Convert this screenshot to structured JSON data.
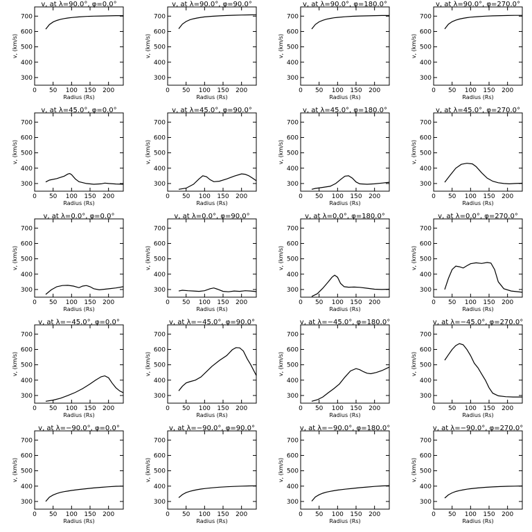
{
  "chart_data": [
    {
      "type": "line",
      "title": "v<sub>r</sub> at λ=90.0°, φ=0.0°",
      "title_text": "v, at λ=90.0°, φ=0.0°",
      "xlabel": "Radius (Rs)",
      "ylabel": "v, (km/s)",
      "xlim": [
        0,
        240
      ],
      "ylim": [
        250,
        760
      ],
      "xticks": [
        0,
        50,
        100,
        150,
        200
      ],
      "yticks": [
        300,
        400,
        500,
        600,
        700
      ],
      "x": [
        30,
        40,
        50,
        60,
        70,
        80,
        90,
        100,
        120,
        140,
        160,
        180,
        200,
        220,
        240
      ],
      "y": [
        615,
        645,
        662,
        672,
        679,
        684,
        688,
        691,
        695,
        698,
        700,
        701,
        702,
        703,
        703
      ]
    },
    {
      "type": "line",
      "title_text": "v, at λ=90.0°, φ=90.0°",
      "xlabel": "Radius (Rs)",
      "ylabel": "v, (km/s)",
      "xlim": [
        0,
        240
      ],
      "ylim": [
        250,
        760
      ],
      "xticks": [
        0,
        50,
        100,
        150,
        200
      ],
      "yticks": [
        300,
        400,
        500,
        600,
        700
      ],
      "x": [
        30,
        40,
        50,
        60,
        70,
        80,
        90,
        100,
        120,
        140,
        160,
        180,
        200,
        220,
        240
      ],
      "y": [
        618,
        648,
        665,
        676,
        683,
        688,
        692,
        695,
        699,
        702,
        704,
        706,
        707,
        708,
        709
      ]
    },
    {
      "type": "line",
      "title_text": "v, at λ=90.0°, φ=180.0°",
      "xlabel": "Radius (Rs)",
      "ylabel": "v, (km/s)",
      "xlim": [
        0,
        240
      ],
      "ylim": [
        250,
        760
      ],
      "xticks": [
        0,
        50,
        100,
        150,
        200
      ],
      "yticks": [
        300,
        400,
        500,
        600,
        700
      ],
      "x": [
        30,
        40,
        50,
        60,
        70,
        80,
        90,
        100,
        120,
        140,
        160,
        180,
        200,
        220,
        240
      ],
      "y": [
        616,
        646,
        663,
        673,
        680,
        685,
        689,
        692,
        696,
        699,
        701,
        702,
        703,
        704,
        704
      ]
    },
    {
      "type": "line",
      "title_text": "v, at λ=90.0°, φ=270.0°",
      "xlabel": "Radius (Rs)",
      "ylabel": "v, (km/s)",
      "xlim": [
        0,
        240
      ],
      "ylim": [
        250,
        760
      ],
      "xticks": [
        0,
        50,
        100,
        150,
        200
      ],
      "yticks": [
        300,
        400,
        500,
        600,
        700
      ],
      "x": [
        30,
        40,
        50,
        60,
        70,
        80,
        90,
        100,
        120,
        140,
        160,
        180,
        200,
        220,
        240
      ],
      "y": [
        617,
        647,
        664,
        674,
        681,
        686,
        690,
        693,
        697,
        700,
        702,
        703,
        704,
        705,
        705
      ]
    },
    {
      "type": "line",
      "title_text": "v, at λ=45.0°, φ=0.0°",
      "xlabel": "Radius (Rs)",
      "ylabel": "v, (km/s)",
      "xlim": [
        0,
        240
      ],
      "ylim": [
        250,
        760
      ],
      "xticks": [
        0,
        50,
        100,
        150,
        200
      ],
      "yticks": [
        300,
        400,
        500,
        600,
        700
      ],
      "x": [
        30,
        40,
        60,
        80,
        90,
        95,
        100,
        110,
        120,
        140,
        160,
        180,
        190,
        200,
        220,
        240
      ],
      "y": [
        310,
        322,
        332,
        348,
        362,
        365,
        358,
        330,
        312,
        300,
        295,
        298,
        303,
        300,
        297,
        295
      ]
    },
    {
      "type": "line",
      "title_text": "v, at λ=45.0°, φ=90.0°",
      "xlabel": "Radius (Rs)",
      "ylabel": "v, (km/s)",
      "xlim": [
        0,
        240
      ],
      "ylim": [
        250,
        760
      ],
      "xticks": [
        0,
        50,
        100,
        150,
        200
      ],
      "yticks": [
        300,
        400,
        500,
        600,
        700
      ],
      "x": [
        30,
        50,
        70,
        85,
        95,
        105,
        115,
        125,
        140,
        160,
        180,
        200,
        210,
        220,
        230,
        240
      ],
      "y": [
        262,
        270,
        295,
        330,
        350,
        345,
        325,
        312,
        315,
        330,
        348,
        363,
        360,
        350,
        335,
        318
      ]
    },
    {
      "type": "line",
      "title_text": "v, at λ=45.0°, φ=180.0°",
      "xlabel": "Radius (Rs)",
      "ylabel": "v, (km/s)",
      "xlim": [
        0,
        240
      ],
      "ylim": [
        250,
        760
      ],
      "xticks": [
        0,
        50,
        100,
        150,
        200
      ],
      "yticks": [
        300,
        400,
        500,
        600,
        700
      ],
      "x": [
        30,
        40,
        60,
        80,
        95,
        110,
        120,
        130,
        140,
        150,
        160,
        180,
        200,
        220,
        240
      ],
      "y": [
        262,
        268,
        275,
        282,
        300,
        330,
        348,
        350,
        335,
        310,
        298,
        295,
        298,
        303,
        308
      ]
    },
    {
      "type": "line",
      "title_text": "v, at λ=45.0°, φ=270.0°",
      "xlabel": "Radius (Rs)",
      "ylabel": "v, (km/s)",
      "xlim": [
        0,
        240
      ],
      "ylim": [
        250,
        760
      ],
      "xticks": [
        0,
        50,
        100,
        150,
        200
      ],
      "yticks": [
        300,
        400,
        500,
        600,
        700
      ],
      "x": [
        30,
        45,
        60,
        75,
        90,
        105,
        115,
        130,
        145,
        160,
        175,
        190,
        205,
        220,
        240
      ],
      "y": [
        308,
        355,
        400,
        425,
        432,
        428,
        410,
        370,
        335,
        315,
        305,
        300,
        298,
        300,
        302
      ]
    },
    {
      "type": "line",
      "title_text": "v, at λ=0.0°, φ=0.0°",
      "xlabel": "Radius (Rs)",
      "ylabel": "v, (km/s)",
      "xlim": [
        0,
        240
      ],
      "ylim": [
        250,
        760
      ],
      "xticks": [
        0,
        50,
        100,
        150,
        200
      ],
      "yticks": [
        300,
        400,
        500,
        600,
        700
      ],
      "x": [
        30,
        45,
        60,
        75,
        90,
        105,
        120,
        130,
        140,
        150,
        160,
        175,
        190,
        205,
        220,
        240
      ],
      "y": [
        268,
        298,
        318,
        326,
        327,
        322,
        312,
        322,
        326,
        318,
        305,
        298,
        302,
        306,
        310,
        318
      ]
    },
    {
      "type": "line",
      "title_text": "v, at λ=0.0°, φ=90.0°",
      "xlabel": "Radius (Rs)",
      "ylabel": "v, (km/s)",
      "xlim": [
        0,
        240
      ],
      "ylim": [
        250,
        760
      ],
      "xticks": [
        0,
        50,
        100,
        150,
        200
      ],
      "yticks": [
        300,
        400,
        500,
        600,
        700
      ],
      "x": [
        30,
        40,
        55,
        70,
        85,
        100,
        115,
        125,
        135,
        150,
        165,
        180,
        195,
        210,
        225,
        240
      ],
      "y": [
        290,
        295,
        292,
        290,
        288,
        292,
        305,
        310,
        302,
        288,
        285,
        290,
        288,
        292,
        290,
        286
      ]
    },
    {
      "type": "line",
      "title_text": "v, at λ=0.0°, φ=180.0°",
      "xlabel": "Radius (Rs)",
      "ylabel": "v, (km/s)",
      "xlim": [
        0,
        240
      ],
      "ylim": [
        250,
        760
      ],
      "xticks": [
        0,
        50,
        100,
        150,
        200
      ],
      "yticks": [
        300,
        400,
        500,
        600,
        700
      ],
      "x": [
        30,
        45,
        60,
        75,
        85,
        92,
        100,
        108,
        118,
        130,
        145,
        160,
        180,
        200,
        220,
        240
      ],
      "y": [
        255,
        272,
        308,
        350,
        380,
        393,
        380,
        340,
        318,
        315,
        316,
        314,
        308,
        302,
        300,
        302
      ]
    },
    {
      "type": "line",
      "title_text": "v, at λ=0.0°, φ=270.0°",
      "xlabel": "Radius (Rs)",
      "ylabel": "v, (km/s)",
      "xlim": [
        0,
        240
      ],
      "ylim": [
        250,
        760
      ],
      "xticks": [
        0,
        50,
        100,
        150,
        200
      ],
      "yticks": [
        300,
        400,
        500,
        600,
        700
      ],
      "x": [
        30,
        40,
        50,
        60,
        70,
        80,
        90,
        100,
        115,
        130,
        145,
        155,
        165,
        175,
        190,
        210,
        240
      ],
      "y": [
        300,
        372,
        430,
        452,
        448,
        440,
        455,
        468,
        474,
        470,
        476,
        472,
        430,
        350,
        305,
        290,
        282
      ]
    },
    {
      "type": "line",
      "title_text": "v, at λ=−45.0°, φ=0.0°",
      "xlabel": "Radius (Rs)",
      "ylabel": "v, (km/s)",
      "xlim": [
        0,
        240
      ],
      "ylim": [
        250,
        760
      ],
      "xticks": [
        0,
        50,
        100,
        150,
        200
      ],
      "yticks": [
        300,
        400,
        500,
        600,
        700
      ],
      "x": [
        30,
        50,
        70,
        90,
        110,
        130,
        150,
        165,
        180,
        190,
        200,
        210,
        220,
        230,
        240
      ],
      "y": [
        262,
        270,
        282,
        300,
        320,
        345,
        375,
        400,
        422,
        428,
        415,
        380,
        350,
        330,
        318
      ]
    },
    {
      "type": "line",
      "title_text": "v, at λ=−45.0°, φ=90.0°",
      "xlabel": "Radius (Rs)",
      "ylabel": "v, (km/s)",
      "xlim": [
        0,
        240
      ],
      "ylim": [
        250,
        760
      ],
      "xticks": [
        0,
        50,
        100,
        150,
        200
      ],
      "yticks": [
        300,
        400,
        500,
        600,
        700
      ],
      "x": [
        30,
        40,
        50,
        60,
        75,
        90,
        105,
        120,
        140,
        160,
        175,
        185,
        195,
        205,
        215,
        225,
        240
      ],
      "y": [
        330,
        360,
        382,
        390,
        400,
        420,
        455,
        490,
        528,
        560,
        598,
        612,
        610,
        590,
        540,
        500,
        430
      ]
    },
    {
      "type": "line",
      "title_text": "v, at λ=−45.0°, φ=180.0°",
      "xlabel": "Radius (Rs)",
      "ylabel": "v, (km/s)",
      "xlim": [
        0,
        240
      ],
      "ylim": [
        250,
        760
      ],
      "xticks": [
        0,
        50,
        100,
        150,
        200
      ],
      "yticks": [
        300,
        400,
        500,
        600,
        700
      ],
      "x": [
        30,
        45,
        60,
        75,
        90,
        105,
        120,
        135,
        150,
        160,
        170,
        180,
        190,
        205,
        220,
        240
      ],
      "y": [
        262,
        272,
        290,
        318,
        345,
        375,
        420,
        460,
        475,
        468,
        455,
        445,
        442,
        450,
        462,
        485
      ]
    },
    {
      "type": "line",
      "title_text": "v, at λ=−45.0°, φ=270.0°",
      "xlabel": "Radius (Rs)",
      "ylabel": "v, (km/s)",
      "xlim": [
        0,
        240
      ],
      "ylim": [
        250,
        760
      ],
      "xticks": [
        0,
        50,
        100,
        150,
        200
      ],
      "yticks": [
        300,
        400,
        500,
        600,
        700
      ],
      "x": [
        30,
        40,
        50,
        60,
        70,
        80,
        90,
        100,
        110,
        120,
        130,
        140,
        150,
        160,
        175,
        195,
        215,
        240
      ],
      "y": [
        530,
        565,
        600,
        625,
        638,
        630,
        600,
        560,
        510,
        480,
        440,
        400,
        350,
        315,
        298,
        292,
        290,
        290
      ]
    },
    {
      "type": "line",
      "title_text": "v, at λ=−90.0°, φ=0.0°",
      "xlabel": "Radius (Rs)",
      "ylabel": "v, (km/s)",
      "xlim": [
        0,
        240
      ],
      "ylim": [
        250,
        760
      ],
      "xticks": [
        0,
        50,
        100,
        150,
        200
      ],
      "yticks": [
        300,
        400,
        500,
        600,
        700
      ],
      "x": [
        30,
        40,
        50,
        60,
        70,
        80,
        90,
        100,
        120,
        140,
        160,
        180,
        200,
        220,
        240
      ],
      "y": [
        300,
        328,
        342,
        352,
        359,
        364,
        368,
        372,
        378,
        383,
        388,
        392,
        396,
        399,
        400
      ]
    },
    {
      "type": "line",
      "title_text": "v, at λ=−90.0°, φ=90.0°",
      "xlabel": "Radius (Rs)",
      "ylabel": "v, (km/s)",
      "xlim": [
        0,
        240
      ],
      "ylim": [
        250,
        760
      ],
      "xticks": [
        0,
        50,
        100,
        150,
        200
      ],
      "yticks": [
        300,
        400,
        500,
        600,
        700
      ],
      "x": [
        30,
        40,
        50,
        60,
        70,
        80,
        90,
        100,
        120,
        140,
        160,
        180,
        200,
        220,
        240
      ],
      "y": [
        325,
        345,
        358,
        366,
        372,
        377,
        381,
        384,
        389,
        393,
        396,
        398,
        400,
        401,
        402
      ]
    },
    {
      "type": "line",
      "title_text": "v, at λ=−90.0°, φ=180.0°",
      "xlabel": "Radius (Rs)",
      "ylabel": "v, (km/s)",
      "xlim": [
        0,
        240
      ],
      "ylim": [
        250,
        760
      ],
      "xticks": [
        0,
        50,
        100,
        150,
        200
      ],
      "yticks": [
        300,
        400,
        500,
        600,
        700
      ],
      "x": [
        30,
        40,
        50,
        60,
        70,
        80,
        90,
        100,
        120,
        140,
        160,
        180,
        200,
        220,
        240
      ],
      "y": [
        302,
        330,
        344,
        354,
        361,
        366,
        370,
        374,
        380,
        385,
        390,
        394,
        398,
        401,
        403
      ]
    },
    {
      "type": "line",
      "title_text": "v, at λ=−90.0°, φ=270.0°",
      "xlabel": "Radius (Rs)",
      "ylabel": "v, (km/s)",
      "xlim": [
        0,
        240
      ],
      "ylim": [
        250,
        760
      ],
      "xticks": [
        0,
        50,
        100,
        150,
        200
      ],
      "yticks": [
        300,
        400,
        500,
        600,
        700
      ],
      "x": [
        30,
        40,
        50,
        60,
        70,
        80,
        90,
        100,
        120,
        140,
        160,
        180,
        200,
        220,
        240
      ],
      "y": [
        322,
        343,
        356,
        365,
        371,
        376,
        380,
        383,
        388,
        392,
        395,
        397,
        399,
        400,
        401
      ]
    }
  ]
}
